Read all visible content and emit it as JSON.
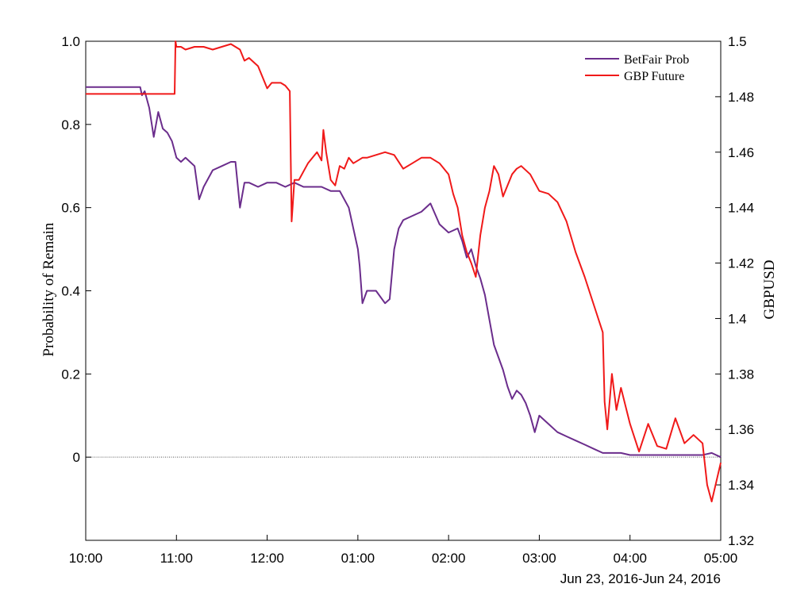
{
  "chart_data": {
    "type": "line",
    "title": "",
    "xlabel": "Jun 23, 2016-Jun 24, 2016",
    "ylabel_left": "Probability of Remain",
    "ylabel_right": "GBPUSD",
    "x_ticks": [
      "10:00",
      "11:00",
      "12:00",
      "01:00",
      "02:00",
      "03:00",
      "04:00",
      "05:00"
    ],
    "x_range_hours": [
      0,
      7
    ],
    "y_left_range": [
      -0.2,
      1.0
    ],
    "y_left_ticks": [
      "0",
      "0.2",
      "0.4",
      "0.6",
      "0.8",
      "1.0"
    ],
    "y_right_range": [
      1.32,
      1.5
    ],
    "y_right_ticks": [
      "1.32",
      "1.34",
      "1.36",
      "1.38",
      "1.4",
      "1.42",
      "1.44",
      "1.46",
      "1.48",
      "1.5"
    ],
    "grid": false,
    "zero_reference_line": true,
    "legend_position": "top-right",
    "series": [
      {
        "name": "BetFair Prob",
        "axis": "left",
        "color": "#6b2d8c",
        "x": [
          0,
          0.3,
          0.6,
          0.62,
          0.65,
          0.7,
          0.75,
          0.8,
          0.85,
          0.9,
          0.95,
          1.0,
          1.05,
          1.1,
          1.15,
          1.2,
          1.25,
          1.3,
          1.35,
          1.4,
          1.5,
          1.6,
          1.65,
          1.7,
          1.75,
          1.8,
          1.9,
          2.0,
          2.1,
          2.2,
          2.3,
          2.4,
          2.5,
          2.6,
          2.7,
          2.8,
          2.9,
          3.0,
          3.02,
          3.05,
          3.1,
          3.2,
          3.3,
          3.35,
          3.4,
          3.45,
          3.5,
          3.6,
          3.7,
          3.8,
          3.9,
          4.0,
          4.1,
          4.15,
          4.2,
          4.25,
          4.3,
          4.35,
          4.4,
          4.45,
          4.5,
          4.55,
          4.6,
          4.65,
          4.7,
          4.75,
          4.8,
          4.85,
          4.9,
          4.95,
          5.0,
          5.1,
          5.2,
          5.3,
          5.4,
          5.5,
          5.6,
          5.7,
          5.8,
          5.9,
          6.0,
          6.2,
          6.4,
          6.6,
          6.8,
          6.9,
          7.0
        ],
        "y": [
          0.89,
          0.89,
          0.89,
          0.87,
          0.88,
          0.84,
          0.77,
          0.83,
          0.79,
          0.78,
          0.76,
          0.72,
          0.71,
          0.72,
          0.71,
          0.7,
          0.62,
          0.65,
          0.67,
          0.69,
          0.7,
          0.71,
          0.71,
          0.6,
          0.66,
          0.66,
          0.65,
          0.66,
          0.66,
          0.65,
          0.66,
          0.65,
          0.65,
          0.65,
          0.64,
          0.64,
          0.6,
          0.5,
          0.46,
          0.37,
          0.4,
          0.4,
          0.37,
          0.38,
          0.5,
          0.55,
          0.57,
          0.58,
          0.59,
          0.61,
          0.56,
          0.54,
          0.55,
          0.52,
          0.48,
          0.5,
          0.46,
          0.43,
          0.39,
          0.33,
          0.27,
          0.24,
          0.21,
          0.17,
          0.14,
          0.16,
          0.15,
          0.13,
          0.1,
          0.06,
          0.1,
          0.08,
          0.06,
          0.05,
          0.04,
          0.03,
          0.02,
          0.01,
          0.01,
          0.01,
          0.005,
          0.005,
          0.005,
          0.005,
          0.005,
          0.01,
          0.0
        ]
      },
      {
        "name": "GBP Future",
        "axis": "right",
        "color": "#f01919",
        "x": [
          0,
          0.5,
          0.98,
          0.99,
          1.0,
          1.05,
          1.1,
          1.2,
          1.3,
          1.4,
          1.5,
          1.6,
          1.7,
          1.75,
          1.8,
          1.9,
          2.0,
          2.05,
          2.1,
          2.15,
          2.2,
          2.25,
          2.27,
          2.28,
          2.3,
          2.35,
          2.4,
          2.45,
          2.5,
          2.55,
          2.6,
          2.62,
          2.65,
          2.7,
          2.75,
          2.8,
          2.85,
          2.9,
          2.95,
          3.0,
          3.05,
          3.1,
          3.2,
          3.3,
          3.4,
          3.5,
          3.6,
          3.7,
          3.8,
          3.9,
          4.0,
          4.05,
          4.1,
          4.15,
          4.2,
          4.25,
          4.3,
          4.35,
          4.4,
          4.45,
          4.5,
          4.55,
          4.6,
          4.65,
          4.7,
          4.75,
          4.8,
          4.9,
          5.0,
          5.1,
          5.2,
          5.3,
          5.4,
          5.5,
          5.6,
          5.7,
          5.72,
          5.75,
          5.8,
          5.85,
          5.9,
          6.0,
          6.1,
          6.2,
          6.3,
          6.4,
          6.5,
          6.6,
          6.7,
          6.8,
          6.85,
          6.9,
          7.0
        ],
        "y": [
          1.481,
          1.481,
          1.481,
          1.5,
          1.498,
          1.498,
          1.497,
          1.498,
          1.498,
          1.497,
          1.498,
          1.499,
          1.497,
          1.493,
          1.494,
          1.491,
          1.483,
          1.485,
          1.485,
          1.485,
          1.484,
          1.482,
          1.435,
          1.44,
          1.45,
          1.45,
          1.453,
          1.456,
          1.458,
          1.46,
          1.457,
          1.468,
          1.46,
          1.45,
          1.448,
          1.455,
          1.454,
          1.458,
          1.456,
          1.457,
          1.458,
          1.458,
          1.459,
          1.46,
          1.459,
          1.454,
          1.456,
          1.458,
          1.458,
          1.456,
          1.452,
          1.445,
          1.44,
          1.43,
          1.424,
          1.42,
          1.415,
          1.43,
          1.44,
          1.446,
          1.455,
          1.452,
          1.444,
          1.448,
          1.452,
          1.454,
          1.455,
          1.452,
          1.446,
          1.445,
          1.442,
          1.435,
          1.424,
          1.415,
          1.405,
          1.395,
          1.37,
          1.36,
          1.38,
          1.367,
          1.375,
          1.362,
          1.352,
          1.362,
          1.354,
          1.353,
          1.364,
          1.355,
          1.358,
          1.355,
          1.34,
          1.334,
          1.348
        ]
      }
    ]
  }
}
